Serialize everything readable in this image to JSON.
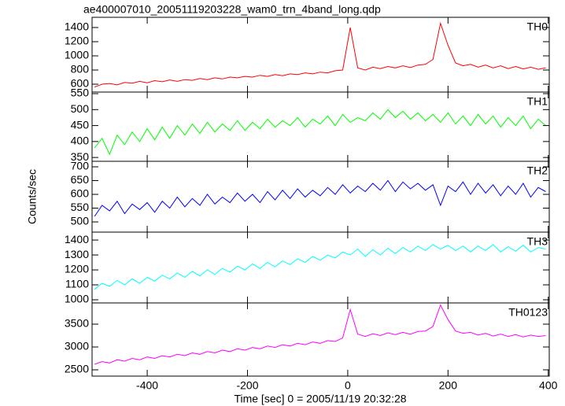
{
  "title": "ae400007010_20051119203228_wam0_trn_4band_long.qdp",
  "ylabel": "Counts/sec",
  "xlabel": "Time [sec] 0 = 2005/11/19 20:32:28",
  "chart_data": [
    {
      "type": "line",
      "xlim": [
        -510,
        402
      ],
      "xticks": [
        -400,
        -200,
        0,
        200,
        400
      ],
      "ylim": [
        489,
        1544
      ],
      "yticks": [
        600,
        800,
        1000,
        1200,
        1400
      ],
      "x": [
        -505,
        -490,
        -475,
        -460,
        -445,
        -430,
        -415,
        -400,
        -385,
        -370,
        -355,
        -340,
        -325,
        -310,
        -295,
        -280,
        -265,
        -250,
        -235,
        -220,
        -205,
        -190,
        -175,
        -160,
        -145,
        -130,
        -115,
        -100,
        -85,
        -70,
        -55,
        -40,
        -25,
        -10,
        5,
        20,
        35,
        50,
        65,
        80,
        95,
        110,
        125,
        140,
        155,
        170,
        185,
        200,
        215,
        230,
        245,
        260,
        275,
        290,
        305,
        320,
        335,
        350,
        365,
        380,
        395
      ],
      "series": [
        {
          "name": "TH0",
          "color": "#ff0000",
          "values": [
            560,
            600,
            610,
            590,
            625,
            615,
            640,
            620,
            650,
            635,
            660,
            640,
            665,
            655,
            680,
            665,
            690,
            675,
            700,
            690,
            710,
            700,
            725,
            710,
            735,
            720,
            745,
            735,
            760,
            745,
            770,
            760,
            790,
            800,
            1400,
            830,
            800,
            840,
            820,
            850,
            830,
            860,
            835,
            870,
            880,
            950,
            1460,
            1150,
            900,
            860,
            880,
            840,
            870,
            830,
            860,
            820,
            850,
            815,
            840,
            810,
            830
          ]
        }
      ]
    },
    {
      "type": "line",
      "xlim": [
        -510,
        402
      ],
      "xticks": [
        -400,
        -200,
        0,
        200,
        400
      ],
      "ylim": [
        338,
        555
      ],
      "yticks": [
        350,
        400,
        450,
        500,
        550
      ],
      "x": [
        -505,
        -490,
        -475,
        -460,
        -445,
        -430,
        -415,
        -400,
        -385,
        -370,
        -355,
        -340,
        -325,
        -310,
        -295,
        -280,
        -265,
        -250,
        -235,
        -220,
        -205,
        -190,
        -175,
        -160,
        -145,
        -130,
        -115,
        -100,
        -85,
        -70,
        -55,
        -40,
        -25,
        -10,
        5,
        20,
        35,
        50,
        65,
        80,
        95,
        110,
        125,
        140,
        155,
        170,
        185,
        200,
        215,
        230,
        245,
        260,
        275,
        290,
        305,
        320,
        335,
        350,
        365,
        380,
        395
      ],
      "series": [
        {
          "name": "TH1",
          "color": "#00ff00",
          "values": [
            380,
            410,
            360,
            420,
            390,
            430,
            400,
            440,
            405,
            445,
            410,
            450,
            420,
            455,
            425,
            460,
            430,
            455,
            435,
            465,
            435,
            460,
            440,
            470,
            445,
            465,
            450,
            475,
            445,
            470,
            455,
            480,
            450,
            485,
            460,
            475,
            465,
            490,
            470,
            500,
            475,
            495,
            470,
            490,
            465,
            485,
            460,
            490,
            455,
            480,
            450,
            485,
            455,
            480,
            445,
            475,
            450,
            480,
            440,
            470,
            450
          ]
        }
      ]
    },
    {
      "type": "line",
      "xlim": [
        -510,
        402
      ],
      "xticks": [
        -400,
        -200,
        0,
        200,
        400
      ],
      "ylim": [
        463,
        720
      ],
      "yticks": [
        500,
        550,
        600,
        650,
        700
      ],
      "x": [
        -505,
        -490,
        -475,
        -460,
        -445,
        -430,
        -415,
        -400,
        -385,
        -370,
        -355,
        -340,
        -325,
        -310,
        -295,
        -280,
        -265,
        -250,
        -235,
        -220,
        -205,
        -190,
        -175,
        -160,
        -145,
        -130,
        -115,
        -100,
        -85,
        -70,
        -55,
        -40,
        -25,
        -10,
        5,
        20,
        35,
        50,
        65,
        80,
        95,
        110,
        125,
        140,
        155,
        170,
        185,
        200,
        215,
        230,
        245,
        260,
        275,
        290,
        305,
        320,
        335,
        350,
        365,
        380,
        395
      ],
      "series": [
        {
          "name": "TH2",
          "color": "#0000ff",
          "values": [
            520,
            560,
            540,
            575,
            530,
            565,
            545,
            570,
            535,
            575,
            550,
            590,
            555,
            585,
            560,
            600,
            565,
            590,
            570,
            605,
            575,
            600,
            570,
            610,
            580,
            615,
            585,
            620,
            590,
            615,
            595,
            625,
            600,
            635,
            605,
            630,
            610,
            640,
            615,
            650,
            610,
            645,
            620,
            640,
            615,
            635,
            560,
            630,
            610,
            645,
            600,
            640,
            605,
            635,
            595,
            630,
            600,
            640,
            590,
            625,
            610
          ]
        }
      ]
    },
    {
      "type": "line",
      "xlim": [
        -510,
        402
      ],
      "xticks": [
        -400,
        -200,
        0,
        200,
        400
      ],
      "ylim": [
        979,
        1453
      ],
      "yticks": [
        1000,
        1100,
        1200,
        1300,
        1400
      ],
      "x": [
        -505,
        -490,
        -475,
        -460,
        -445,
        -430,
        -415,
        -400,
        -385,
        -370,
        -355,
        -340,
        -325,
        -310,
        -295,
        -280,
        -265,
        -250,
        -235,
        -220,
        -205,
        -190,
        -175,
        -160,
        -145,
        -130,
        -115,
        -100,
        -85,
        -70,
        -55,
        -40,
        -25,
        -10,
        5,
        20,
        35,
        50,
        65,
        80,
        95,
        110,
        125,
        140,
        155,
        170,
        185,
        200,
        215,
        230,
        245,
        260,
        275,
        290,
        305,
        320,
        335,
        350,
        365,
        380,
        395
      ],
      "series": [
        {
          "name": "TH3",
          "color": "#00ffff",
          "values": [
            1070,
            1110,
            1090,
            1130,
            1100,
            1140,
            1110,
            1150,
            1125,
            1165,
            1140,
            1180,
            1150,
            1190,
            1160,
            1200,
            1170,
            1210,
            1185,
            1225,
            1200,
            1240,
            1210,
            1250,
            1220,
            1260,
            1235,
            1275,
            1250,
            1290,
            1265,
            1300,
            1280,
            1320,
            1300,
            1340,
            1290,
            1335,
            1300,
            1345,
            1310,
            1350,
            1320,
            1360,
            1330,
            1370,
            1340,
            1365,
            1330,
            1360,
            1320,
            1360,
            1330,
            1370,
            1320,
            1355,
            1325,
            1365,
            1320,
            1350,
            1340
          ]
        }
      ]
    },
    {
      "type": "line",
      "xlim": [
        -510,
        402
      ],
      "xticks": [
        -400,
        -200,
        0,
        200,
        400
      ],
      "ylim": [
        2362,
        3965
      ],
      "yticks": [
        2500,
        3000,
        3500
      ],
      "x": [
        -505,
        -490,
        -475,
        -460,
        -445,
        -430,
        -415,
        -400,
        -385,
        -370,
        -355,
        -340,
        -325,
        -310,
        -295,
        -280,
        -265,
        -250,
        -235,
        -220,
        -205,
        -190,
        -175,
        -160,
        -145,
        -130,
        -115,
        -100,
        -85,
        -70,
        -55,
        -40,
        -25,
        -10,
        5,
        20,
        35,
        50,
        65,
        80,
        95,
        110,
        125,
        140,
        155,
        170,
        185,
        200,
        215,
        230,
        245,
        260,
        275,
        290,
        305,
        320,
        335,
        350,
        365,
        380,
        395
      ],
      "series": [
        {
          "name": "TH0123",
          "color": "#ff00ff",
          "values": [
            2620,
            2680,
            2650,
            2720,
            2690,
            2750,
            2720,
            2780,
            2750,
            2810,
            2780,
            2840,
            2810,
            2870,
            2840,
            2900,
            2870,
            2930,
            2900,
            2960,
            2930,
            2990,
            2960,
            3020,
            2990,
            3050,
            3020,
            3080,
            3050,
            3110,
            3080,
            3140,
            3120,
            3200,
            3820,
            3280,
            3230,
            3290,
            3250,
            3310,
            3270,
            3320,
            3280,
            3340,
            3350,
            3450,
            3920,
            3600,
            3350,
            3300,
            3320,
            3260,
            3300,
            3240,
            3280,
            3230,
            3270,
            3220,
            3260,
            3230,
            3250
          ]
        }
      ]
    }
  ]
}
